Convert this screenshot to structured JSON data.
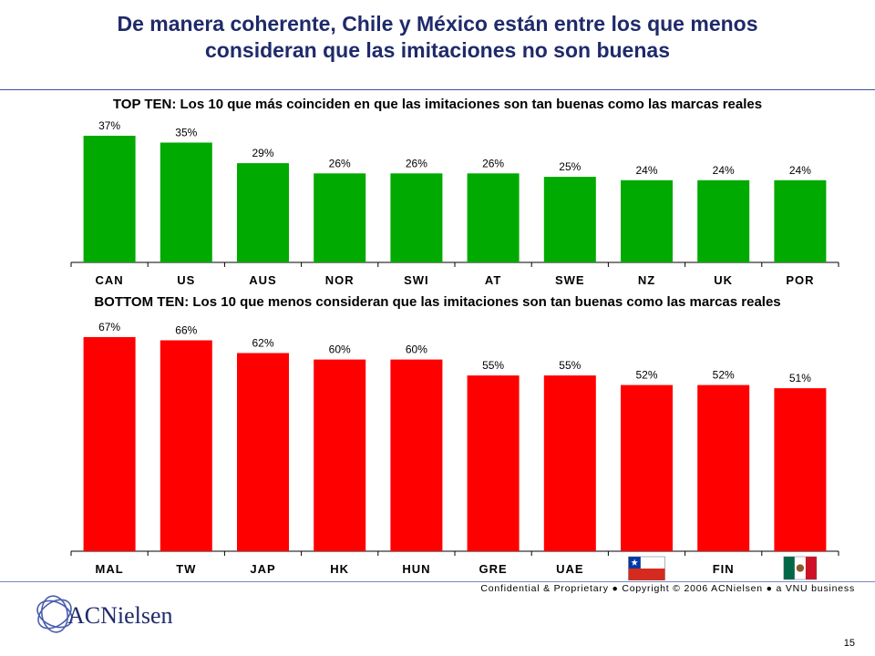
{
  "title": {
    "line1": "De manera coherente, Chile y México están entre los que menos",
    "line2": "consideran que las imitaciones no son buenas"
  },
  "footer": {
    "confidential": "Confidential & Proprietary ● Copyright © 2006 ACNielsen ● a VNU business",
    "page_number": "15",
    "logo_text": "ACNielsen"
  },
  "colors": {
    "top": "#00aa00",
    "bottom": "#ff0000",
    "title": "#1f2a6b",
    "rule": "#3b4fa3"
  },
  "chart_data": [
    {
      "type": "bar",
      "title": "TOP TEN: Los 10 que más coinciden en que las imitaciones son tan buenas como las marcas reales",
      "categories": [
        "CAN",
        "US",
        "AUS",
        "NOR",
        "SWI",
        "AT",
        "SWE",
        "NZ",
        "UK",
        "POR"
      ],
      "values": [
        37,
        35,
        29,
        26,
        26,
        26,
        25,
        24,
        24,
        24
      ],
      "value_labels": [
        "37%",
        "35%",
        "29%",
        "26%",
        "26%",
        "26%",
        "25%",
        "24%",
        "24%",
        "24%"
      ],
      "ylim": [
        0,
        40
      ],
      "grid": false,
      "color": "#00aa00"
    },
    {
      "type": "bar",
      "title": "BOTTOM TEN: Los 10 que menos consideran que las imitaciones son tan buenas como las marcas reales",
      "categories": [
        "MAL",
        "TW",
        "JAP",
        "HK",
        "HUN",
        "GRE",
        "UAE",
        "",
        "FIN",
        ""
      ],
      "category_icons": [
        "",
        "",
        "",
        "",
        "",
        "",
        "",
        "chile-flag-icon",
        "",
        "mexico-flag-icon"
      ],
      "values": [
        67,
        66,
        62,
        60,
        60,
        55,
        55,
        52,
        52,
        51
      ],
      "value_labels": [
        "67%",
        "66%",
        "62%",
        "60%",
        "60%",
        "55%",
        "55%",
        "52%",
        "52%",
        "51%"
      ],
      "ylim": [
        0,
        70
      ],
      "grid": false,
      "color": "#ff0000"
    }
  ]
}
